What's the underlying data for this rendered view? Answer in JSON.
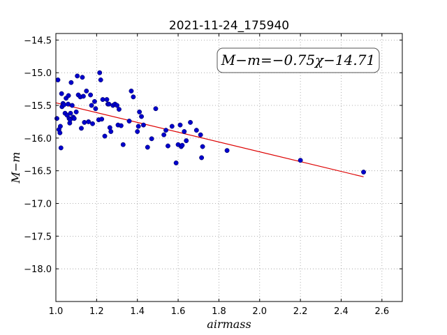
{
  "chart_data": {
    "type": "scatter",
    "title": "2021-11-24_175940",
    "xlabel": "airmass",
    "ylabel": "M−m",
    "annotation": "M−m=−0.75χ−14.71",
    "xlim": [
      1.0,
      2.7
    ],
    "ylim": [
      -18.5,
      -14.4
    ],
    "ylim_inverted": true,
    "grid": true,
    "x_ticks": [
      1.0,
      1.2,
      1.4,
      1.6,
      1.8,
      2.0,
      2.2,
      2.4,
      2.6
    ],
    "x_tick_labels": [
      "1.0",
      "1.2",
      "1.4",
      "1.6",
      "1.8",
      "2.0",
      "2.2",
      "2.4",
      "2.6"
    ],
    "y_ticks": [
      -14.5,
      -15.0,
      -15.5,
      -16.0,
      -16.5,
      -17.0,
      -17.5,
      -18.0
    ],
    "y_tick_labels": [
      "−14.5",
      "−15.0",
      "−15.5",
      "−16.0",
      "−16.5",
      "−17.0",
      "−17.5",
      "−18.0"
    ],
    "point_color": "#0000cc",
    "fit_color": "#dd0000",
    "fit": {
      "slope": -0.75,
      "intercept": -14.71,
      "x_range": [
        1.0,
        2.51
      ]
    },
    "points": [
      [
        1.005,
        -15.7
      ],
      [
        1.01,
        -15.11
      ],
      [
        1.015,
        -15.87
      ],
      [
        1.02,
        -15.92
      ],
      [
        1.022,
        -15.82
      ],
      [
        1.025,
        -16.15
      ],
      [
        1.028,
        -15.32
      ],
      [
        1.03,
        -15.52
      ],
      [
        1.035,
        -15.47
      ],
      [
        1.04,
        -15.49
      ],
      [
        1.045,
        -15.62
      ],
      [
        1.05,
        -15.39
      ],
      [
        1.055,
        -15.65
      ],
      [
        1.06,
        -15.48
      ],
      [
        1.062,
        -15.35
      ],
      [
        1.065,
        -15.7
      ],
      [
        1.068,
        -15.77
      ],
      [
        1.07,
        -15.72
      ],
      [
        1.072,
        -15.62
      ],
      [
        1.075,
        -15.15
      ],
      [
        1.08,
        -15.5
      ],
      [
        1.085,
        -15.68
      ],
      [
        1.09,
        -15.7
      ],
      [
        1.1,
        -15.6
      ],
      [
        1.105,
        -15.05
      ],
      [
        1.11,
        -15.34
      ],
      [
        1.12,
        -15.37
      ],
      [
        1.125,
        -15.85
      ],
      [
        1.13,
        -15.07
      ],
      [
        1.135,
        -15.36
      ],
      [
        1.14,
        -15.76
      ],
      [
        1.15,
        -15.28
      ],
      [
        1.16,
        -15.75
      ],
      [
        1.17,
        -15.34
      ],
      [
        1.175,
        -15.5
      ],
      [
        1.18,
        -15.78
      ],
      [
        1.19,
        -15.44
      ],
      [
        1.195,
        -15.55
      ],
      [
        1.21,
        -15.72
      ],
      [
        1.215,
        -15.0
      ],
      [
        1.22,
        -15.11
      ],
      [
        1.225,
        -15.71
      ],
      [
        1.23,
        -15.41
      ],
      [
        1.24,
        -15.97
      ],
      [
        1.25,
        -15.41
      ],
      [
        1.255,
        -15.48
      ],
      [
        1.26,
        -15.48
      ],
      [
        1.265,
        -15.84
      ],
      [
        1.27,
        -15.9
      ],
      [
        1.28,
        -15.5
      ],
      [
        1.29,
        -15.48
      ],
      [
        1.3,
        -15.5
      ],
      [
        1.305,
        -15.8
      ],
      [
        1.31,
        -15.56
      ],
      [
        1.32,
        -15.81
      ],
      [
        1.33,
        -16.1
      ],
      [
        1.36,
        -15.74
      ],
      [
        1.37,
        -15.28
      ],
      [
        1.38,
        -15.37
      ],
      [
        1.4,
        -15.9
      ],
      [
        1.405,
        -15.82
      ],
      [
        1.41,
        -15.6
      ],
      [
        1.42,
        -15.67
      ],
      [
        1.43,
        -15.8
      ],
      [
        1.45,
        -16.14
      ],
      [
        1.47,
        -16.01
      ],
      [
        1.49,
        -15.55
      ],
      [
        1.53,
        -15.95
      ],
      [
        1.54,
        -15.88
      ],
      [
        1.55,
        -16.12
      ],
      [
        1.57,
        -15.82
      ],
      [
        1.59,
        -16.38
      ],
      [
        1.6,
        -16.1
      ],
      [
        1.61,
        -15.8
      ],
      [
        1.615,
        -16.13
      ],
      [
        1.62,
        -16.11
      ],
      [
        1.63,
        -15.9
      ],
      [
        1.64,
        -16.04
      ],
      [
        1.66,
        -15.76
      ],
      [
        1.69,
        -15.88
      ],
      [
        1.71,
        -15.95
      ],
      [
        1.715,
        -16.3
      ],
      [
        1.72,
        -16.13
      ],
      [
        1.84,
        -16.19
      ],
      [
        2.2,
        -16.34
      ],
      [
        2.51,
        -16.52
      ]
    ]
  }
}
